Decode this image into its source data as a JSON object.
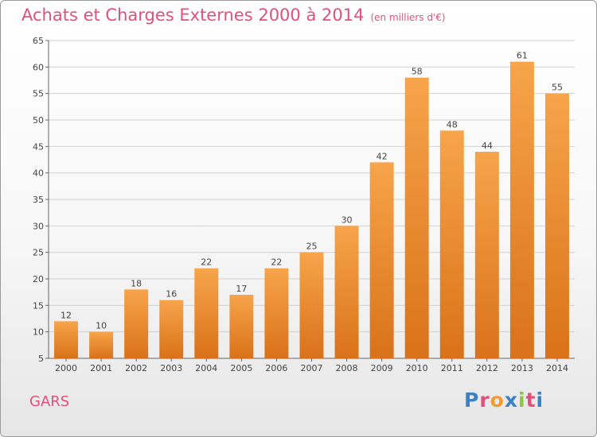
{
  "header": {
    "title": "Achats et Charges Externes 2000 à 2014",
    "unit": "(en milliers d'€)"
  },
  "footer": {
    "commune": "GARS",
    "logo_text": "Proxiti",
    "logo_colors": [
      "#3a82c4",
      "#e2507a",
      "#f39c2b",
      "#3a82c4",
      "#8cc63f",
      "#e2507a",
      "#3a82c4"
    ]
  },
  "colors": {
    "bar_light": "#f7a44a",
    "bar_dark": "#d9721a",
    "title": "#e2507a",
    "grid": "#d0d0d0"
  },
  "chart_data": {
    "type": "bar",
    "title": "Achats et Charges Externes 2000 à 2014",
    "subtitle": "(en milliers d'€)",
    "categories": [
      "2000",
      "2001",
      "2002",
      "2003",
      "2004",
      "2005",
      "2006",
      "2007",
      "2008",
      "2009",
      "2010",
      "2011",
      "2012",
      "2013",
      "2014"
    ],
    "values": [
      12,
      10,
      18,
      16,
      22,
      17,
      22,
      25,
      30,
      42,
      58,
      48,
      44,
      61,
      55
    ],
    "ylim": [
      5,
      65
    ],
    "yticks": [
      5,
      10,
      15,
      20,
      25,
      30,
      35,
      40,
      45,
      50,
      55,
      60,
      65
    ],
    "grid": true,
    "data_labels": true
  }
}
